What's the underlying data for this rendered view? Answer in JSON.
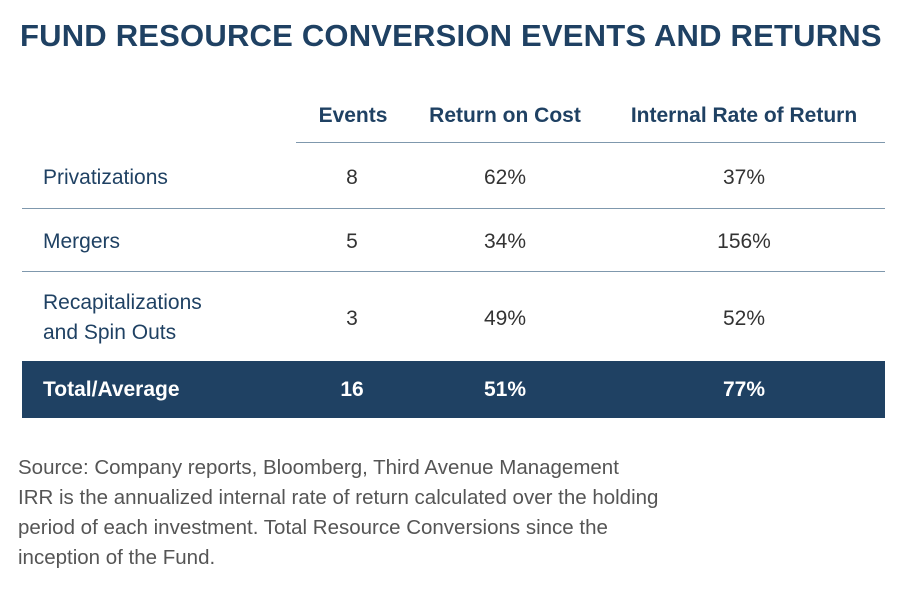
{
  "title": "FUND RESOURCE CONVERSION EVENTS AND RETURNS",
  "table": {
    "headers": [
      "Events",
      "Return on Cost",
      "Internal Rate of Return"
    ],
    "rows": [
      {
        "label_lines": [
          "Privatizations"
        ],
        "events": "8",
        "return_on_cost": "62%",
        "irr": "37%"
      },
      {
        "label_lines": [
          "Mergers"
        ],
        "events": "5",
        "return_on_cost": "34%",
        "irr": "156%"
      },
      {
        "label_lines": [
          "Recapitalizations",
          "and Spin Outs"
        ],
        "events": "3",
        "return_on_cost": "49%",
        "irr": "52%"
      }
    ],
    "total": {
      "label": "Total/Average",
      "events": "16",
      "return_on_cost": "51%",
      "irr": "77%"
    }
  },
  "notes": {
    "source": "Source: Company reports, Bloomberg, Third Avenue Management",
    "footnote_lines": [
      "IRR is the annualized internal rate of return calculated over the holding",
      "period of each investment. Total Resource Conversions since the",
      "inception of the Fund."
    ]
  },
  "colors": {
    "navy": "#1f4163",
    "rule": "#7f98ad",
    "body_text": "#333333",
    "note_text": "#555555"
  }
}
